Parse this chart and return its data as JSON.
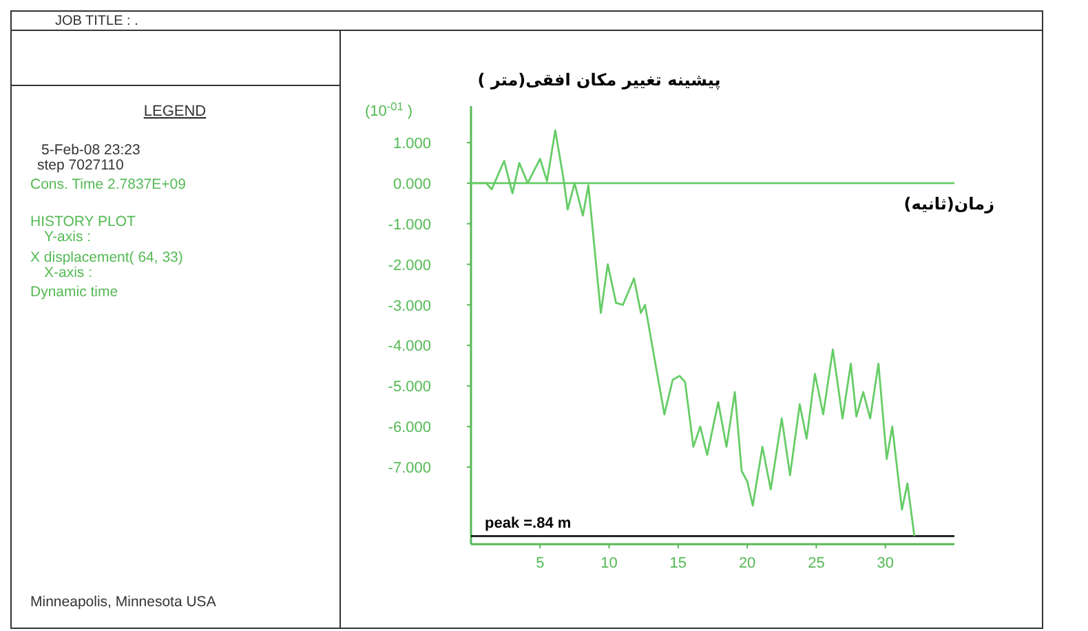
{
  "chart_data": {
    "type": "line",
    "ylabel": "پیشینه تغییر مکان افقی(متر )",
    "xlabel": "زمان(ثانیه)",
    "annotations": [
      "(10$^{-01}$ )",
      "JOB TITLE : .",
      "LEGEND",
      "5-Feb-08  23:23",
      "step  7027110",
      "Cons. Time    2.7837E+09",
      "HISTORY PLOT",
      "Y-axis :",
      "X displacement( 64, 33)",
      "X-axis :",
      "Dynamic time",
      "Minneapolis, Minnesota  USA"
    ],
    "x": [
      0.1,
      1.1,
      1.5,
      2.4,
      3.0,
      3.5,
      4.1,
      5.0,
      5.5,
      6.1,
      6.7,
      7.0,
      7.5,
      8.1,
      8.5,
      9.4,
      9.9,
      10.5,
      11.0,
      11.8,
      12.3,
      12.6,
      14.0,
      14.6,
      15.1,
      15.5,
      16.1,
      16.6,
      17.1,
      17.9,
      18.5,
      19.1,
      19.6,
      20.0,
      20.4,
      21.1,
      21.7,
      22.5,
      23.1,
      23.8,
      24.3,
      24.9,
      25.5,
      26.2,
      26.9,
      27.5,
      27.9,
      28.4,
      28.9,
      29.5,
      30.1,
      30.5,
      31.2,
      31.6,
      32.1
    ],
    "series": [
      {
        "color": "#66cc66",
        "values": [
          0,
          0,
          -0.15,
          0.55,
          -0.25,
          0.5,
          0,
          0.6,
          0.05,
          1.3,
          0.1,
          -0.65,
          0,
          -0.8,
          -0.05,
          -3.2,
          -2.0,
          -2.95,
          -3.0,
          -2.35,
          -3.2,
          -3.0,
          -5.7,
          -4.85,
          -4.75,
          -4.9,
          -6.5,
          -6.0,
          -6.7,
          -5.4,
          -6.5,
          -5.15,
          -7.1,
          -7.35,
          -7.95,
          -6.5,
          -7.55,
          -5.8,
          -7.2,
          -5.45,
          -6.3,
          -4.7,
          -5.7,
          -4.1,
          -5.8,
          -4.45,
          -5.75,
          -5.15,
          -5.8,
          -4.45,
          -6.8,
          -6.0,
          -8.05,
          -7.4,
          -8.7
        ]
      }
    ],
    "xlim": [
      0,
      35
    ],
    "ylim": [
      -8.9,
      1.9
    ],
    "xticks": [
      5,
      10,
      15,
      20,
      25,
      30
    ],
    "yticks": [
      {
        "value": 1,
        "label": "1.000"
      },
      {
        "value": 0,
        "label": "0.000"
      },
      {
        "value": -1,
        "label": "-1.000"
      },
      {
        "value": -2,
        "label": "-2.000"
      },
      {
        "value": -3,
        "label": "-3.000"
      },
      {
        "value": -4,
        "label": "-4.000"
      },
      {
        "value": -5,
        "label": "-5.000"
      },
      {
        "value": -6,
        "label": "-6.000"
      },
      {
        "value": -7,
        "label": "-7.000"
      }
    ],
    "ref_lines": [
      {
        "axis": "y",
        "value": 0,
        "color": "#66cc66"
      },
      {
        "axis": "y",
        "value": -8.7,
        "label": "peak =.84 m",
        "color": "#000000"
      }
    ],
    "grid": false,
    "marker": "none",
    "line_style": "solid"
  }
}
